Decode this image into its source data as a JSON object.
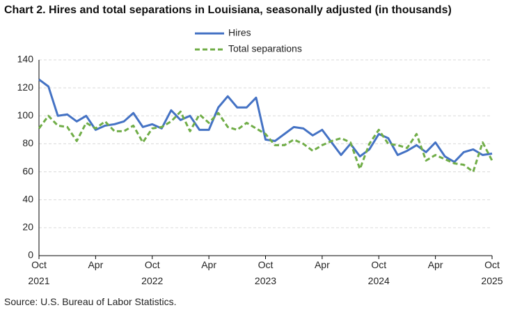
{
  "chart_data": {
    "type": "line",
    "title": "Chart 2. Hires and total separations in Louisiana, seasonally adjusted (in thousands)",
    "source": "Source: U.S. Bureau of Labor Statistics.",
    "categories": [
      "Oct 2021",
      null,
      null,
      null,
      null,
      null,
      "Apr",
      null,
      null,
      null,
      null,
      null,
      "Oct 2022",
      null,
      null,
      null,
      null,
      null,
      "Apr",
      null,
      null,
      null,
      null,
      null,
      "Oct 2023",
      null,
      null,
      null,
      null,
      null,
      "Apr",
      null,
      null,
      null,
      null,
      null,
      "Oct 2024",
      null,
      null,
      null,
      null,
      null,
      "Apr",
      null,
      null,
      null,
      null,
      null,
      "Oct 2025"
    ],
    "series": [
      {
        "name": "Hires",
        "color": "#4472c4",
        "dash": false,
        "values": [
          126,
          121,
          100,
          101,
          96,
          100,
          90,
          93,
          94,
          96,
          102,
          92,
          94,
          91,
          104,
          97,
          100,
          90,
          90,
          106,
          114,
          106,
          106,
          113,
          83,
          82,
          87,
          92,
          91,
          86,
          90,
          81,
          72,
          80,
          71,
          76,
          87,
          84,
          72,
          75,
          79,
          74,
          81,
          71,
          67,
          74,
          76,
          72,
          73
        ]
      },
      {
        "name": "Total separations",
        "color": "#70ad47",
        "dash": true,
        "values": [
          91,
          100,
          93,
          92,
          82,
          95,
          91,
          96,
          89,
          89,
          93,
          81,
          91,
          92,
          96,
          103,
          89,
          101,
          95,
          102,
          92,
          90,
          95,
          91,
          87,
          79,
          79,
          83,
          80,
          75,
          79,
          82,
          84,
          81,
          62,
          80,
          90,
          80,
          79,
          77,
          87,
          68,
          72,
          69,
          66,
          65,
          60,
          81,
          68
        ]
      }
    ],
    "ylim": [
      0,
      140
    ],
    "yticks": [
      0,
      20,
      40,
      60,
      80,
      100,
      120,
      140
    ],
    "grid": true
  }
}
